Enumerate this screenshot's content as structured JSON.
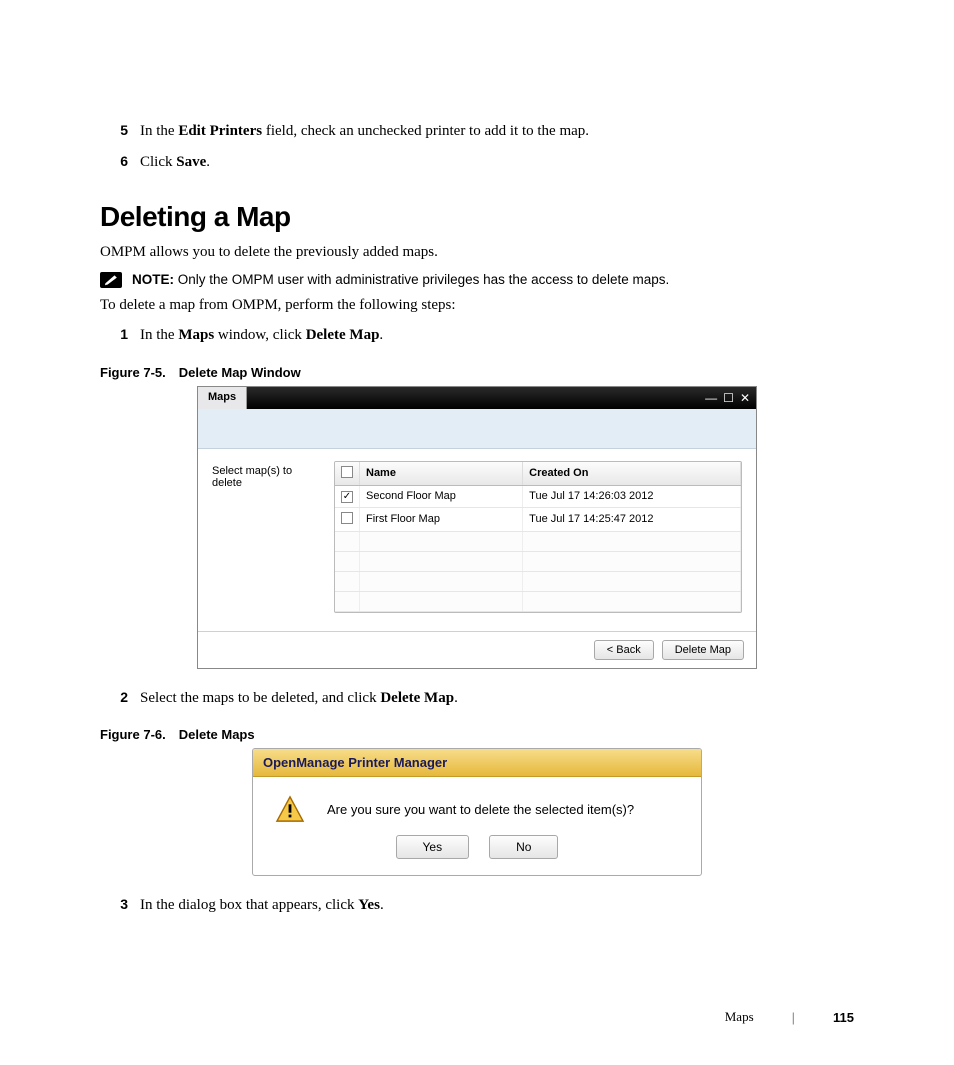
{
  "steps_top": [
    {
      "num": "5",
      "html": "In the <b>Edit Printers</b> field, check an unchecked printer to add it to the map."
    },
    {
      "num": "6",
      "html": "Click <b>Save</b>."
    }
  ],
  "section_title": "Deleting a Map",
  "intro": "OMPM allows you to delete the previously added maps.",
  "note_label": "NOTE:",
  "note_text": "Only the OMPM user with administrative privileges has the access to delete maps.",
  "intro2": "To delete a map from OMPM, perform the following steps:",
  "step1": {
    "num": "1",
    "html": "In the <b>Maps</b> window, click <b>Delete Map</b>."
  },
  "fig75_caption": "Figure 7-5. Delete Map Window",
  "maps_window": {
    "title": "Maps",
    "left_label": "Select map(s) to delete",
    "columns": [
      "",
      "Name",
      "Created On"
    ],
    "rows": [
      {
        "checked": true,
        "name": "Second Floor Map",
        "created": "Tue Jul 17 14:26:03 2012"
      },
      {
        "checked": false,
        "name": "First Floor Map",
        "created": "Tue Jul 17 14:25:47 2012"
      }
    ],
    "empty_rows": 4,
    "back_btn": "< Back",
    "delete_btn": "Delete Map",
    "colors": {
      "titlebar_bg": "#000000",
      "tab_bg": "#e8e8ea",
      "toolbar_bg": "#e3edf5",
      "header_grad_top": "#fcfcfc",
      "header_grad_bottom": "#e8e8e8",
      "border": "#bbbbbb"
    }
  },
  "step2": {
    "num": "2",
    "html": "Select the maps to be deleted, and click <b>Delete Map</b>."
  },
  "fig76_caption": "Figure 7-6. Delete Maps",
  "dialog": {
    "title": "OpenManage Printer Manager",
    "message": "Are you sure you want to delete the selected item(s)?",
    "yes": "Yes",
    "no": "No",
    "colors": {
      "title_grad_top": "#f7dd8a",
      "title_grad_bottom": "#e6b83c",
      "title_text": "#1a1a5a",
      "warn_fill": "#f7c948",
      "warn_border": "#a56a00"
    }
  },
  "step3": {
    "num": "3",
    "html": "In the dialog box that appears, click <b>Yes</b>."
  },
  "footer": {
    "section": "Maps",
    "page": "115"
  }
}
